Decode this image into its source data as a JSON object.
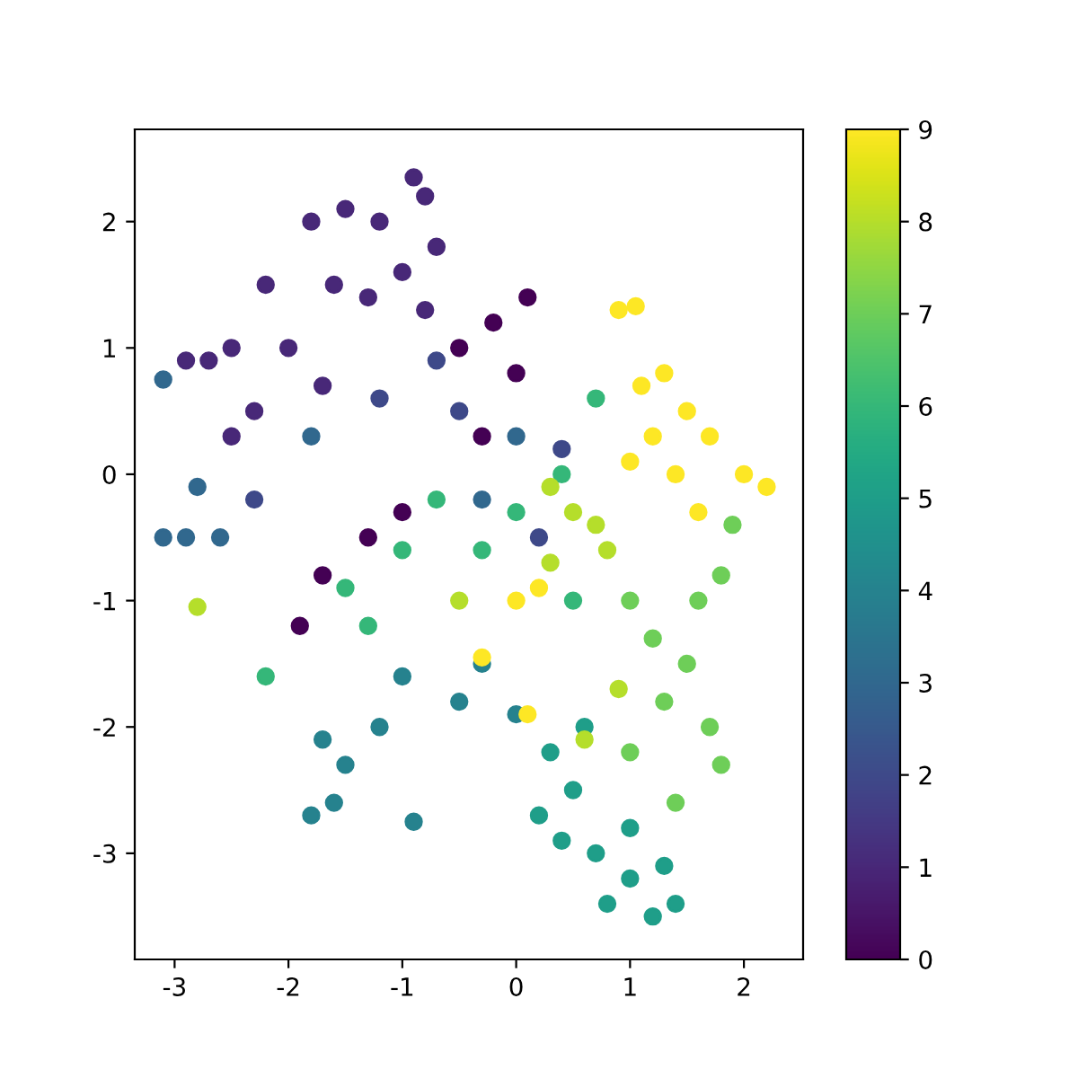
{
  "chart_data": {
    "type": "scatter",
    "marker": "circle",
    "grid": false,
    "legend": false,
    "xlim": [
      -3.35,
      2.52
    ],
    "xticks": [
      -3,
      -2,
      -1,
      0,
      1,
      2
    ],
    "ylim": [
      -3.84,
      2.73
    ],
    "yticks": [
      -3,
      -2,
      -1,
      0,
      1,
      2
    ],
    "clim": [
      0,
      9
    ],
    "cticks": [
      0,
      1,
      2,
      3,
      4,
      5,
      6,
      7,
      8,
      9
    ],
    "x": [
      -1.8,
      -1.5,
      -1.2,
      -0.9,
      -0.8,
      -2.2,
      -2.5,
      -2.7,
      -2.9,
      -2.3,
      -2.0,
      -1.6,
      -1.3,
      -1.0,
      -0.8,
      -1.7,
      -2.5,
      -0.7,
      -0.2,
      -0.5,
      0.0,
      -0.3,
      -1.3,
      -1.7,
      -1.0,
      0.1,
      -1.9,
      -3.1,
      -3.1,
      -2.9,
      -2.6,
      -2.3,
      -1.8,
      -1.2,
      -0.5,
      0.0,
      0.4,
      -0.7,
      -0.3,
      0.2,
      -2.8,
      -1.5,
      -1.2,
      -1.6,
      -0.9,
      -1.8,
      -0.5,
      -0.3,
      0.0,
      -1.0,
      -1.7,
      0.5,
      0.7,
      1.0,
      1.2,
      1.4,
      0.8,
      0.3,
      0.6,
      1.0,
      0.4,
      1.3,
      0.2,
      -1.0,
      -1.5,
      -0.7,
      0.4,
      0.7,
      -2.2,
      -0.3,
      0.5,
      -1.3,
      0.0,
      1.5,
      1.7,
      1.8,
      1.3,
      1.6,
      1.2,
      1.8,
      1.9,
      1.0,
      1.4,
      1.0,
      0.3,
      0.5,
      0.7,
      0.3,
      0.8,
      -2.8,
      -0.5,
      0.6,
      0.9,
      0.9,
      1.05,
      1.3,
      1.5,
      1.2,
      1.7,
      2.0,
      2.2,
      1.0,
      1.4,
      1.6,
      1.1,
      0.0,
      -0.3,
      0.1,
      0.2
    ],
    "values": [
      2.0,
      2.1,
      2.0,
      2.35,
      2.2,
      1.5,
      1.0,
      0.9,
      0.9,
      0.5,
      1.0,
      1.5,
      1.4,
      1.6,
      1.3,
      0.7,
      0.3,
      1.8,
      1.2,
      1.0,
      0.8,
      0.3,
      -0.5,
      -0.8,
      -0.3,
      1.4,
      -1.2,
      0.75,
      -0.5,
      -0.5,
      -0.5,
      -0.2,
      0.3,
      0.6,
      0.5,
      0.3,
      0.2,
      0.9,
      -0.2,
      -0.5,
      -0.1,
      -2.3,
      -2.0,
      -2.6,
      -2.75,
      -2.7,
      -1.8,
      -1.5,
      -1.9,
      -1.6,
      -2.1,
      -2.5,
      -3.0,
      -3.2,
      -3.5,
      -3.4,
      -3.4,
      -2.2,
      -2.0,
      -2.8,
      -2.9,
      -3.1,
      -2.7,
      -0.6,
      -0.9,
      -0.2,
      0.0,
      0.6,
      -1.6,
      -0.6,
      -1.0,
      -1.2,
      -0.3,
      -1.5,
      -2.0,
      -2.3,
      -1.8,
      -1.0,
      -1.3,
      -0.8,
      -0.4,
      -2.2,
      -2.6,
      -1.0,
      -0.7,
      -0.3,
      -0.4,
      -0.1,
      -0.6,
      -1.05,
      -1.0,
      -2.1,
      -1.7,
      1.3,
      1.33,
      0.8,
      0.5,
      0.3,
      0.3,
      0.0,
      -0.1,
      0.1,
      0.0,
      -0.3,
      0.7,
      -1.0,
      -1.45,
      -1.9,
      -0.9
    ],
    "cvalues": [
      1,
      1,
      1,
      1,
      1,
      1,
      1,
      1,
      1,
      1,
      1,
      1,
      1,
      1,
      1,
      1,
      1,
      1,
      0,
      0,
      0,
      0,
      0,
      0,
      0,
      0,
      0,
      3,
      3,
      3,
      3,
      2,
      3,
      2,
      2,
      3,
      2,
      2,
      3,
      2,
      3,
      4,
      4,
      4,
      4,
      4,
      4,
      4,
      4,
      4,
      4,
      5,
      5,
      5,
      5,
      5,
      5,
      5,
      5,
      5,
      5,
      5,
      5,
      6,
      6,
      6,
      6,
      6,
      6,
      6,
      6,
      6,
      6,
      7,
      7,
      7,
      7,
      7,
      7,
      7,
      7,
      7,
      7,
      7,
      8,
      8,
      8,
      8,
      8,
      8,
      8,
      8,
      8,
      9,
      9,
      9,
      9,
      9,
      9,
      9,
      9,
      9,
      9,
      9,
      9,
      9,
      9,
      9,
      9
    ]
  }
}
